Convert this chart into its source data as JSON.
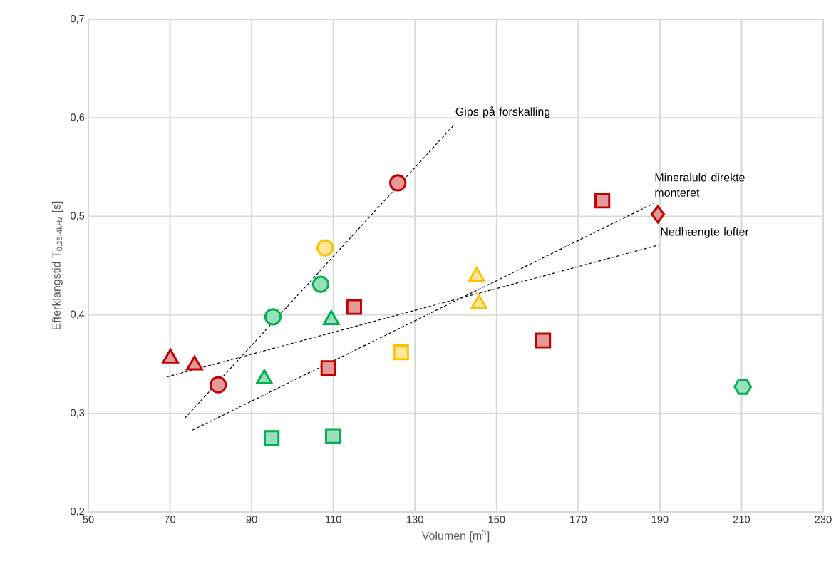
{
  "chart_data": {
    "type": "scatter",
    "xlabel": "Volumen [m$^{3}$]",
    "ylabel": "Efterklangstid T$_{0,25-4kHz}$ [s]",
    "xlim": [
      50,
      230
    ],
    "xticks": [
      50,
      70,
      90,
      110,
      130,
      150,
      170,
      190,
      210,
      230
    ],
    "ylim": [
      0.2,
      0.7
    ],
    "yticks": [
      {
        "value": 0.2,
        "label": "0,2"
      },
      {
        "value": 0.3,
        "label": "0,3"
      },
      {
        "value": 0.4,
        "label": "0,4"
      },
      {
        "value": 0.5,
        "label": "0,5"
      },
      {
        "value": 0.6,
        "label": "0,6"
      },
      {
        "value": 0.7,
        "label": "0,7"
      }
    ],
    "grid": true,
    "series": [
      {
        "x": [
          70.1
        ],
        "values": [
          0.356
        ],
        "marker": "triangle",
        "color": "#c00000"
      },
      {
        "x": [
          76.0
        ],
        "values": [
          0.349
        ],
        "marker": "triangle",
        "color": "#c00000"
      },
      {
        "x": [
          81.8
        ],
        "values": [
          0.329
        ],
        "marker": "circle",
        "color": "#c00000"
      },
      {
        "x": [
          93.1
        ],
        "values": [
          0.335
        ],
        "marker": "triangle",
        "color": "#00b050"
      },
      {
        "x": [
          94.9
        ],
        "values": [
          0.275
        ],
        "marker": "square",
        "color": "#00b050"
      },
      {
        "x": [
          95.2
        ],
        "values": [
          0.398
        ],
        "marker": "circle",
        "color": "#00b050"
      },
      {
        "x": [
          108.0
        ],
        "values": [
          0.468
        ],
        "marker": "circle",
        "color": "#ffc000"
      },
      {
        "x": [
          106.9
        ],
        "values": [
          0.431
        ],
        "marker": "circle",
        "color": "#00b050"
      },
      {
        "x": [
          109.5
        ],
        "values": [
          0.395
        ],
        "marker": "triangle",
        "color": "#00b050"
      },
      {
        "x": [
          108.8
        ],
        "values": [
          0.346
        ],
        "marker": "square",
        "color": "#c00000"
      },
      {
        "x": [
          109.9
        ],
        "values": [
          0.277
        ],
        "marker": "square",
        "color": "#00b050"
      },
      {
        "x": [
          115.1
        ],
        "values": [
          0.408
        ],
        "marker": "square",
        "color": "#c00000"
      },
      {
        "x": [
          125.8
        ],
        "values": [
          0.534
        ],
        "marker": "circle",
        "color": "#c00000"
      },
      {
        "x": [
          126.6
        ],
        "values": [
          0.362
        ],
        "marker": "square",
        "color": "#ffc000"
      },
      {
        "x": [
          145.1
        ],
        "values": [
          0.439
        ],
        "marker": "triangle",
        "color": "#ffc000"
      },
      {
        "x": [
          145.7
        ],
        "values": [
          0.411
        ],
        "marker": "triangle",
        "color": "#ffc000"
      },
      {
        "x": [
          161.4
        ],
        "values": [
          0.374
        ],
        "marker": "square",
        "color": "#c00000"
      },
      {
        "x": [
          175.9
        ],
        "values": [
          0.516
        ],
        "marker": "square",
        "color": "#c00000"
      },
      {
        "x": [
          189.5
        ],
        "values": [
          0.502
        ],
        "marker": "diamond",
        "color": "#c00000"
      },
      {
        "x": [
          210.3
        ],
        "values": [
          0.327
        ],
        "color": "#00b050"
      },
      {
        "type": "line",
        "x": [
          73.6,
          139.6
        ],
        "values": [
          0.295,
          0.593
        ],
        "marker": "none",
        "line_style": "dashed",
        "color": "#000000"
      },
      {
        "type": "line",
        "x": [
          75.5,
          188.4
        ],
        "values": [
          0.283,
          0.513
        ],
        "marker": "none",
        "line_style": "dashed",
        "color": "#000000"
      },
      {
        "type": "line",
        "x": [
          69.2,
          189.8
        ],
        "values": [
          0.337,
          0.471
        ],
        "marker": "none",
        "line_style": "dashed",
        "color": "#000000"
      }
    ],
    "annotations": [
      "Gips på forskalling",
      "Mineraluld direkte monteret",
      "Nedhængte lofter"
    ]
  }
}
